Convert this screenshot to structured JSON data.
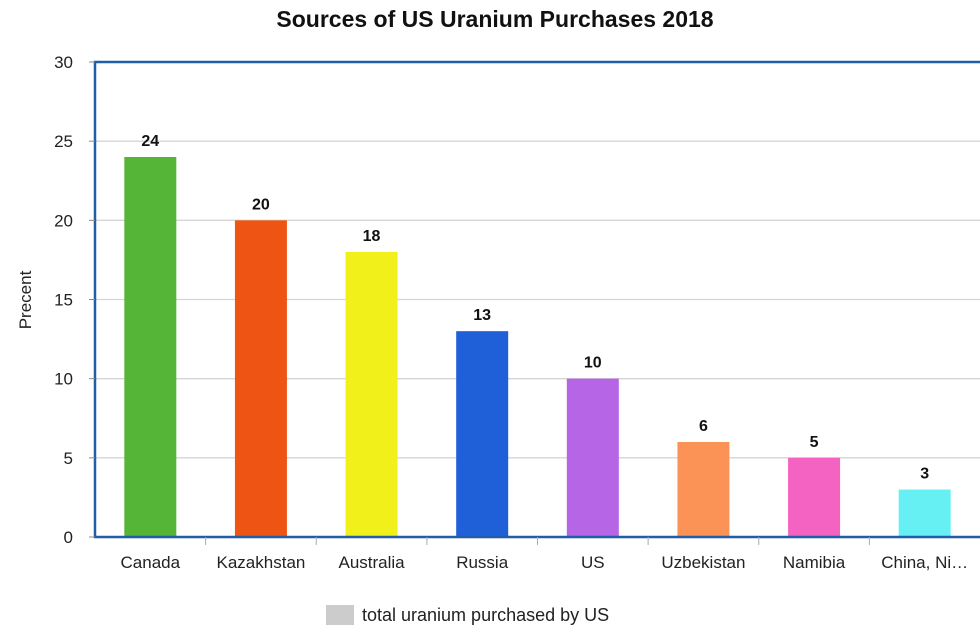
{
  "chart_data": {
    "type": "bar",
    "title": "Sources of US Uranium Purchases 2018",
    "ylabel": "Precent",
    "xlabel": "",
    "categories": [
      "Canada",
      "Kazakhstan",
      "Australia",
      "Russia",
      "US",
      "Uzbekistan",
      "Namibia",
      "China, Ni…"
    ],
    "series": [
      {
        "name": "total uranium purchased by US",
        "values": [
          24,
          20,
          18,
          13,
          10,
          6,
          5,
          3
        ]
      }
    ],
    "bar_colors": [
      "#55b536",
      "#ee5515",
      "#f2f01a",
      "#1f60d8",
      "#b565e6",
      "#fb9356",
      "#f563c2",
      "#67f0f4"
    ],
    "ylim": [
      0,
      30
    ],
    "yticks": [
      0,
      5,
      10,
      15,
      20,
      25,
      30
    ],
    "grid": true,
    "legend_position": "bottom",
    "legend_color": "#cccccc",
    "frame_color": "#1f5fa6"
  }
}
